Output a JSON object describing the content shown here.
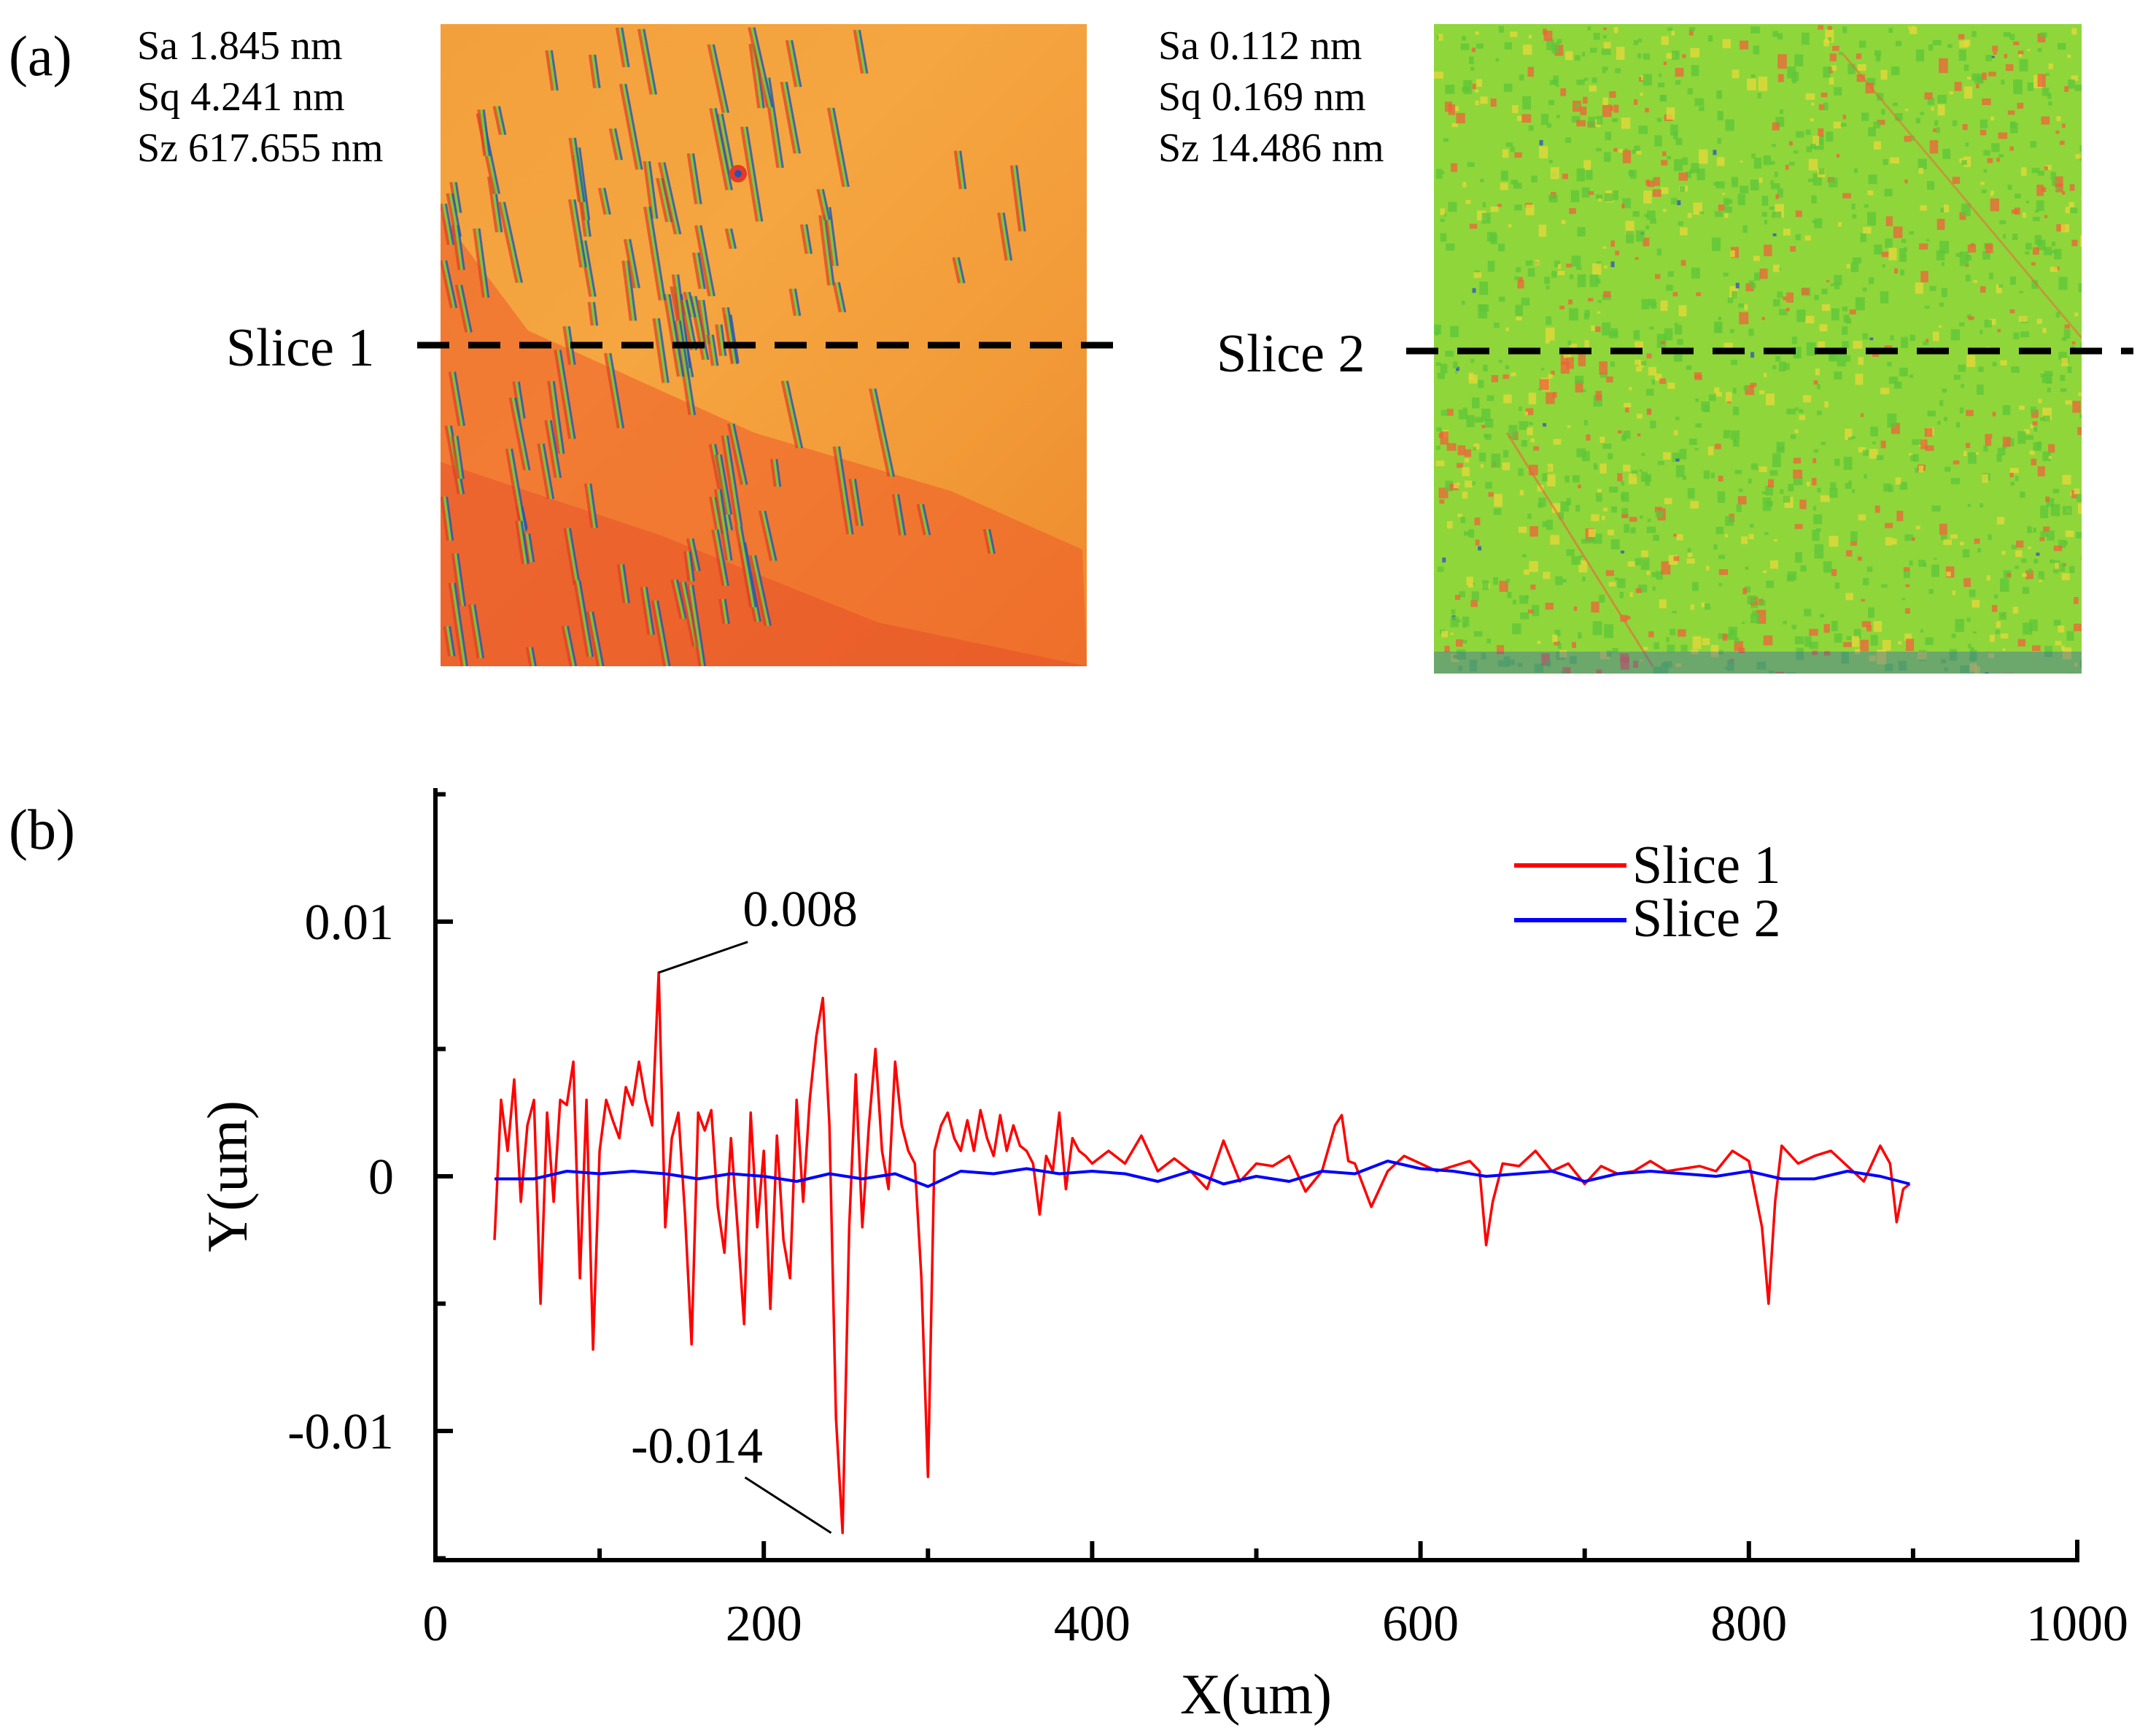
{
  "panel_a": {
    "label": "(a)",
    "left": {
      "stats": [
        "Sa 1.845 nm",
        "Sq 4.241 nm",
        "Sz 617.655 nm"
      ],
      "slice_label": "Slice 1",
      "palette": [
        "#f5a640",
        "#ee5a2a",
        "#e33b25",
        "#77c93a",
        "#2d4fb5"
      ]
    },
    "right": {
      "stats": [
        "Sa 0.112 nm",
        "Sq 0.169 nm",
        "Sz 14.486 nm"
      ],
      "slice_label": "Slice 2",
      "palette": [
        "#8fd63a",
        "#5cc53a",
        "#f0623a",
        "#e8d83a",
        "#2a4fc8"
      ]
    }
  },
  "panel_b": {
    "label": "(b)"
  },
  "chart_data": {
    "type": "line",
    "xlabel": "X(um)",
    "ylabel": "Y(um)",
    "xlim": [
      0,
      1000
    ],
    "ylim": [
      -0.015,
      0.015
    ],
    "xticks": [
      0,
      200,
      400,
      600,
      800,
      1000
    ],
    "xtick_labels": [
      "0",
      "200",
      "400",
      "600",
      "800",
      "1000"
    ],
    "yticks": [
      -0.01,
      0,
      0.01
    ],
    "ytick_labels": [
      "-0.01",
      "0",
      "0.01"
    ],
    "legend": "top-right",
    "series": [
      {
        "name": "Slice 1",
        "color": "#ff0000",
        "x": [
          36,
          40,
          44,
          48,
          52,
          56,
          60,
          64,
          68,
          72,
          76,
          80,
          84,
          88,
          92,
          96,
          100,
          104,
          108,
          112,
          116,
          120,
          124,
          128,
          132,
          136,
          140,
          144,
          148,
          152,
          156,
          160,
          164,
          168,
          172,
          176,
          180,
          184,
          188,
          192,
          196,
          200,
          204,
          208,
          212,
          216,
          220,
          224,
          228,
          232,
          236,
          240,
          244,
          248,
          252,
          256,
          260,
          264,
          268,
          272,
          276,
          280,
          284,
          288,
          292,
          296,
          300,
          304,
          308,
          312,
          316,
          320,
          324,
          328,
          332,
          336,
          340,
          344,
          348,
          352,
          356,
          360,
          364,
          368,
          372,
          376,
          380,
          384,
          388,
          392,
          396,
          400,
          410,
          420,
          430,
          440,
          450,
          460,
          470,
          480,
          490,
          500,
          510,
          520,
          530,
          540,
          548,
          552,
          556,
          560,
          570,
          580,
          590,
          600,
          610,
          620,
          630,
          636,
          640,
          644,
          650,
          660,
          670,
          680,
          690,
          700,
          710,
          720,
          730,
          740,
          750,
          760,
          770,
          780,
          790,
          800,
          808,
          812,
          816,
          820,
          830,
          840,
          850,
          860,
          870,
          880,
          886,
          890,
          894,
          898
        ],
        "y": [
          -0.0025,
          0.003,
          0.001,
          0.0038,
          -0.001,
          0.002,
          0.003,
          -0.005,
          0.0025,
          -0.001,
          0.003,
          0.0028,
          0.0045,
          -0.004,
          0.003,
          -0.0068,
          0.001,
          0.003,
          0.0022,
          0.0015,
          0.0035,
          0.0028,
          0.0045,
          0.003,
          0.002,
          0.008,
          -0.002,
          0.0015,
          0.0025,
          -0.0015,
          -0.0066,
          0.0025,
          0.0018,
          0.0026,
          -0.0012,
          -0.003,
          0.0015,
          -0.002,
          -0.0058,
          0.0025,
          -0.002,
          0.001,
          -0.0052,
          0.0016,
          -0.0025,
          -0.004,
          0.003,
          -0.001,
          0.003,
          0.0055,
          0.007,
          0.002,
          -0.0095,
          -0.014,
          -0.002,
          0.004,
          -0.002,
          0.002,
          0.005,
          0.001,
          -0.0005,
          0.0045,
          0.002,
          0.001,
          0.0005,
          -0.004,
          -0.0118,
          0.001,
          0.002,
          0.0025,
          0.0015,
          0.001,
          0.0022,
          0.001,
          0.0026,
          0.0015,
          0.0008,
          0.0024,
          0.001,
          0.002,
          0.0012,
          0.001,
          0.0005,
          -0.0015,
          0.0008,
          0.0002,
          0.0025,
          -0.0005,
          0.0015,
          0.001,
          0.0008,
          0.0005,
          0.001,
          0.0005,
          0.0016,
          0.0002,
          0.0007,
          0.0002,
          -0.0005,
          0.0014,
          -0.0002,
          0.0005,
          0.0004,
          0.0008,
          -0.0006,
          0.0002,
          0.002,
          0.0024,
          0.0006,
          0.0005,
          -0.0012,
          0.0002,
          0.0008,
          0.0005,
          0.0002,
          0.0004,
          0.0006,
          0.0002,
          -0.0027,
          -0.001,
          0.0005,
          0.0004,
          0.001,
          0.0002,
          0.0005,
          -0.0003,
          0.0004,
          0.0001,
          0.0002,
          0.0006,
          0.0002,
          0.0003,
          0.0004,
          0.0002,
          0.001,
          0.0006,
          -0.002,
          -0.005,
          -0.001,
          0.0012,
          0.0005,
          0.0008,
          0.001,
          0.0004,
          -0.0002,
          0.0012,
          0.0005,
          -0.0018,
          -0.0005,
          -0.0003
        ]
      },
      {
        "name": "Slice 2",
        "color": "#0000ff",
        "x": [
          36,
          60,
          80,
          100,
          120,
          140,
          160,
          180,
          200,
          220,
          240,
          260,
          280,
          300,
          320,
          340,
          360,
          380,
          400,
          420,
          440,
          460,
          480,
          500,
          520,
          540,
          560,
          580,
          600,
          620,
          640,
          660,
          680,
          700,
          720,
          740,
          760,
          780,
          800,
          820,
          840,
          860,
          880,
          898
        ],
        "y": [
          -0.0001,
          -0.0001,
          0.0002,
          0.0001,
          0.0002,
          0.0001,
          -0.0001,
          0.0001,
          0.0,
          -0.0002,
          0.0001,
          -0.0001,
          0.0001,
          -0.0004,
          0.0002,
          0.0001,
          0.0003,
          0.0001,
          0.0002,
          0.0001,
          -0.0002,
          0.0002,
          -0.0003,
          0.0,
          -0.0002,
          0.0002,
          0.0001,
          0.0006,
          0.0003,
          0.0002,
          0.0,
          0.0001,
          0.0002,
          -0.0002,
          0.0001,
          0.0002,
          0.0001,
          0.0,
          0.0002,
          -0.0001,
          -0.0001,
          0.0002,
          0.0,
          -0.0003
        ]
      }
    ],
    "annotations": [
      {
        "text": "0.008",
        "x": 136,
        "y": 0.008
      },
      {
        "text": "-0.014",
        "x": 241,
        "y": -0.014
      }
    ]
  }
}
